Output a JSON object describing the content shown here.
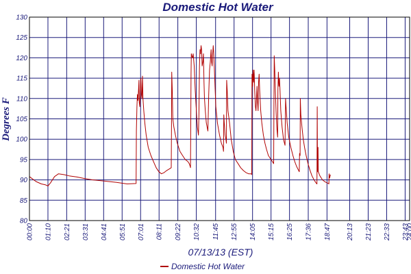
{
  "chart_data": {
    "type": "line",
    "title": "Domestic Hot Water",
    "xlabel": "07/13/13 (EST)",
    "ylabel": "Degrees F",
    "ylim": [
      80,
      130
    ],
    "y_ticks": [
      80,
      85,
      90,
      95,
      100,
      105,
      110,
      115,
      120,
      125,
      130
    ],
    "xlim": [
      0,
      1440
    ],
    "x_ticks": [
      {
        "t": 0,
        "label": "00:00"
      },
      {
        "t": 70,
        "label": "01:10"
      },
      {
        "t": 141,
        "label": "02:21"
      },
      {
        "t": 211,
        "label": "03:31"
      },
      {
        "t": 281,
        "label": "04:41"
      },
      {
        "t": 351,
        "label": "05:51"
      },
      {
        "t": 421,
        "label": "07:01"
      },
      {
        "t": 491,
        "label": "08:11"
      },
      {
        "t": 562,
        "label": "09:22"
      },
      {
        "t": 632,
        "label": "10:32"
      },
      {
        "t": 705,
        "label": "11:45"
      },
      {
        "t": 775,
        "label": "12:55"
      },
      {
        "t": 845,
        "label": "14:05"
      },
      {
        "t": 915,
        "label": "15:15"
      },
      {
        "t": 985,
        "label": "16:25"
      },
      {
        "t": 1056,
        "label": "17:36"
      },
      {
        "t": 1127,
        "label": "18:47"
      },
      {
        "t": 1213,
        "label": "20:13"
      },
      {
        "t": 1283,
        "label": "21:23"
      },
      {
        "t": 1353,
        "label": "22:33"
      },
      {
        "t": 1423,
        "label": "23:43"
      },
      {
        "t": 1440,
        "label": "24:00"
      }
    ],
    "grid": true,
    "legend_position": "bottom",
    "series": [
      {
        "name": "Domestic Hot Water",
        "color": "#b00000",
        "points": [
          [
            0,
            90.8
          ],
          [
            10,
            90.3
          ],
          [
            25,
            89.6
          ],
          [
            45,
            89.0
          ],
          [
            60,
            88.8
          ],
          [
            70,
            88.5
          ],
          [
            80,
            89.3
          ],
          [
            95,
            90.8
          ],
          [
            110,
            91.5
          ],
          [
            130,
            91.3
          ],
          [
            150,
            91.0
          ],
          [
            180,
            90.7
          ],
          [
            210,
            90.3
          ],
          [
            240,
            90.0
          ],
          [
            270,
            89.8
          ],
          [
            300,
            89.6
          ],
          [
            330,
            89.4
          ],
          [
            350,
            89.2
          ],
          [
            370,
            89.0
          ],
          [
            404,
            89.1
          ],
          [
            405,
            102.0
          ],
          [
            407,
            108.0
          ],
          [
            409,
            111.0
          ],
          [
            411,
            109.5
          ],
          [
            413,
            112.0
          ],
          [
            415,
            114.5
          ],
          [
            416,
            109.0
          ],
          [
            418,
            108.0
          ],
          [
            420,
            112.0
          ],
          [
            422,
            115.0
          ],
          [
            424,
            111.0
          ],
          [
            426,
            110.0
          ],
          [
            428,
            115.5
          ],
          [
            430,
            110.0
          ],
          [
            433,
            107.0
          ],
          [
            437,
            104.0
          ],
          [
            442,
            101.0
          ],
          [
            450,
            98.0
          ],
          [
            460,
            96.0
          ],
          [
            470,
            94.5
          ],
          [
            480,
            93.0
          ],
          [
            490,
            92.0
          ],
          [
            500,
            91.5
          ],
          [
            510,
            91.8
          ],
          [
            520,
            92.3
          ],
          [
            530,
            92.7
          ],
          [
            537,
            93.0
          ],
          [
            538,
            104.0
          ],
          [
            539,
            116.5
          ],
          [
            541,
            112.0
          ],
          [
            543,
            105.0
          ],
          [
            547,
            103.0
          ],
          [
            553,
            101.0
          ],
          [
            560,
            99.0
          ],
          [
            570,
            97.0
          ],
          [
            580,
            96.0
          ],
          [
            590,
            95.0
          ],
          [
            600,
            94.5
          ],
          [
            605,
            94.0
          ],
          [
            608,
            93.5
          ],
          [
            610,
            93.0
          ],
          [
            611,
            104.0
          ],
          [
            612,
            116.0
          ],
          [
            613,
            121.0
          ],
          [
            615,
            120.5
          ],
          [
            618,
            120.0
          ],
          [
            620,
            121.0
          ],
          [
            624,
            118.0
          ],
          [
            628,
            112.0
          ],
          [
            633,
            106.0
          ],
          [
            636,
            103.0
          ],
          [
            640,
            101.0
          ],
          [
            642,
            106.0
          ],
          [
            644,
            118.0
          ],
          [
            646,
            122.0
          ],
          [
            648,
            121.0
          ],
          [
            650,
            123.0
          ],
          [
            652,
            122.0
          ],
          [
            654,
            118.0
          ],
          [
            657,
            119.0
          ],
          [
            659,
            121.0
          ],
          [
            661,
            114.0
          ],
          [
            663,
            110.0
          ],
          [
            666,
            107.0
          ],
          [
            670,
            104.0
          ],
          [
            676,
            102.0
          ],
          [
            679,
            111.0
          ],
          [
            682,
            117.0
          ],
          [
            685,
            119.0
          ],
          [
            688,
            122.0
          ],
          [
            690,
            119.0
          ],
          [
            692,
            118.0
          ],
          [
            694,
            121.0
          ],
          [
            696,
            123.0
          ],
          [
            698,
            121.0
          ],
          [
            700,
            118.0
          ],
          [
            703,
            113.0
          ],
          [
            706,
            108.0
          ],
          [
            712,
            104.0
          ],
          [
            720,
            101.0
          ],
          [
            727,
            99.0
          ],
          [
            733,
            98.0
          ],
          [
            735,
            97.0
          ],
          [
            736,
            106.0
          ],
          [
            738,
            104.0
          ],
          [
            741,
            101.0
          ],
          [
            744,
            100.0
          ],
          [
            746,
            99.0
          ],
          [
            747,
            114.5
          ],
          [
            749,
            112.0
          ],
          [
            752,
            107.0
          ],
          [
            758,
            104.0
          ],
          [
            764,
            100.0
          ],
          [
            772,
            97.0
          ],
          [
            780,
            95.0
          ],
          [
            790,
            94.0
          ],
          [
            800,
            93.0
          ],
          [
            810,
            92.3
          ],
          [
            820,
            91.8
          ],
          [
            830,
            91.5
          ],
          [
            840,
            91.5
          ],
          [
            842,
            91.3
          ],
          [
            843,
            116.0
          ],
          [
            845,
            113.0
          ],
          [
            847,
            117.0
          ],
          [
            849,
            114.0
          ],
          [
            851,
            117.0
          ],
          [
            853,
            112.0
          ],
          [
            856,
            108.0
          ],
          [
            858,
            107.0
          ],
          [
            860,
            110.0
          ],
          [
            862,
            113.0
          ],
          [
            864,
            109.0
          ],
          [
            866,
            107.0
          ],
          [
            868,
            114.0
          ],
          [
            870,
            116.0
          ],
          [
            872,
            112.0
          ],
          [
            876,
            107.0
          ],
          [
            880,
            104.0
          ],
          [
            886,
            101.0
          ],
          [
            892,
            99.0
          ],
          [
            898,
            97.5
          ],
          [
            905,
            96.0
          ],
          [
            912,
            95.3
          ],
          [
            920,
            94.5
          ],
          [
            925,
            94.0
          ],
          [
            926,
            108.0
          ],
          [
            927,
            120.5
          ],
          [
            929,
            117.0
          ],
          [
            931,
            113.0
          ],
          [
            934,
            107.0
          ],
          [
            936,
            104.0
          ],
          [
            938,
            102.0
          ],
          [
            940,
            100.5
          ],
          [
            941,
            112.0
          ],
          [
            943,
            116.5
          ],
          [
            945,
            113.0
          ],
          [
            947,
            115.0
          ],
          [
            949,
            112.0
          ],
          [
            952,
            107.0
          ],
          [
            957,
            103.0
          ],
          [
            962,
            100.0
          ],
          [
            966,
            99.0
          ],
          [
            968,
            98.5
          ],
          [
            970,
            110.0
          ],
          [
            972,
            108.0
          ],
          [
            976,
            104.0
          ],
          [
            982,
            100.5
          ],
          [
            990,
            98.0
          ],
          [
            998,
            96.0
          ],
          [
            1005,
            94.5
          ],
          [
            1012,
            93.3
          ],
          [
            1018,
            92.5
          ],
          [
            1022,
            92.0
          ],
          [
            1023,
            96.5
          ],
          [
            1025,
            96.0
          ],
          [
            1026,
            110.0
          ],
          [
            1028,
            106.0
          ],
          [
            1032,
            103.0
          ],
          [
            1037,
            100.0
          ],
          [
            1042,
            98.0
          ],
          [
            1048,
            96.0
          ],
          [
            1055,
            94.0
          ],
          [
            1062,
            92.5
          ],
          [
            1070,
            91.0
          ],
          [
            1078,
            90.0
          ],
          [
            1085,
            89.3
          ],
          [
            1089,
            89.0
          ],
          [
            1090,
            108.0
          ],
          [
            1091,
            93.0
          ],
          [
            1092,
            92.0
          ],
          [
            1093,
            98.0
          ],
          [
            1094,
            92.0
          ],
          [
            1100,
            91.0
          ],
          [
            1110,
            90.0
          ],
          [
            1120,
            89.5
          ],
          [
            1130,
            89.2
          ],
          [
            1134,
            89.0
          ],
          [
            1135,
            91.5
          ],
          [
            1137,
            90.5
          ],
          [
            1140,
            91.3
          ]
        ]
      }
    ]
  }
}
